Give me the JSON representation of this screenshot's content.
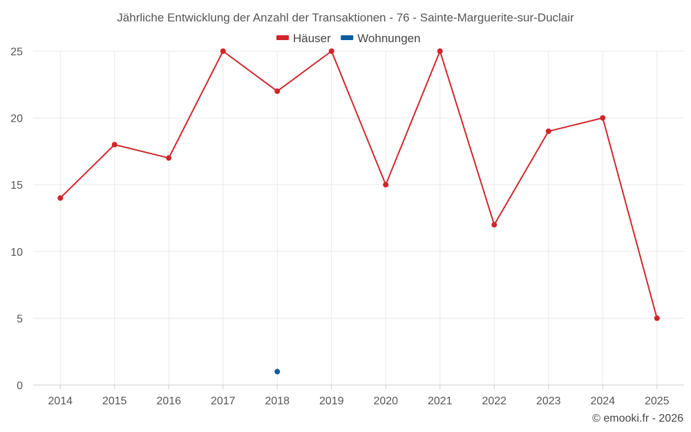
{
  "chart_data": {
    "type": "line",
    "title": "Jährliche Entwicklung der Anzahl der Transaktionen - 76 - Sainte-Marguerite-sur-Duclair",
    "categories": [
      "2014",
      "2015",
      "2016",
      "2017",
      "2018",
      "2019",
      "2020",
      "2021",
      "2022",
      "2023",
      "2024",
      "2025"
    ],
    "series": [
      {
        "name": "Häuser",
        "color": "#d0262a",
        "values": [
          14,
          18,
          17,
          25,
          22,
          25,
          15,
          25,
          12,
          19,
          20,
          5
        ]
      },
      {
        "name": "Wohnungen",
        "color": "#0b5e9e",
        "values": [
          null,
          null,
          null,
          null,
          1,
          null,
          null,
          null,
          null,
          null,
          null,
          null
        ]
      }
    ],
    "ylim": [
      0,
      25
    ],
    "yticks": [
      0,
      5,
      10,
      15,
      20,
      25
    ],
    "xlabel": "",
    "ylabel": "",
    "grid": true,
    "legend": "top-center"
  },
  "credit": "© emooki.fr - 2026"
}
